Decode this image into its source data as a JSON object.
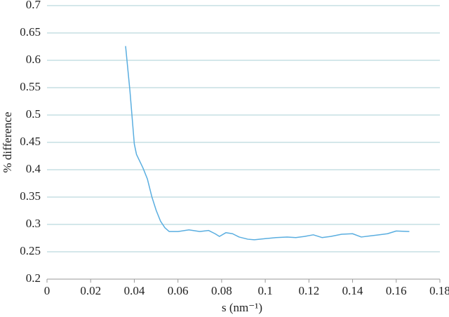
{
  "chart_data": {
    "type": "line",
    "x_label": "s (nm⁻¹)",
    "y_label": "% difference",
    "x": [
      0.036,
      0.038,
      0.04,
      0.041,
      0.044,
      0.046,
      0.048,
      0.05,
      0.052,
      0.054,
      0.056,
      0.06,
      0.065,
      0.07,
      0.074,
      0.077,
      0.079,
      0.082,
      0.085,
      0.088,
      0.092,
      0.095,
      0.1,
      0.105,
      0.11,
      0.114,
      0.118,
      0.122,
      0.126,
      0.13,
      0.135,
      0.14,
      0.144,
      0.148,
      0.152,
      0.156,
      0.16,
      0.166
    ],
    "series": [
      {
        "color": "#5aaee0",
        "values": [
          0.626,
          0.544,
          0.447,
          0.428,
          0.403,
          0.383,
          0.351,
          0.326,
          0.306,
          0.294,
          0.287,
          0.287,
          0.29,
          0.287,
          0.289,
          0.283,
          0.278,
          0.285,
          0.283,
          0.277,
          0.273,
          0.272,
          0.274,
          0.276,
          0.277,
          0.276,
          0.278,
          0.281,
          0.276,
          0.278,
          0.282,
          0.283,
          0.277,
          0.279,
          0.281,
          0.283,
          0.288,
          0.287
        ]
      }
    ],
    "xlim": [
      0,
      0.18
    ],
    "xticks": [
      0,
      0.02,
      0.04,
      0.06,
      0.08,
      0.1,
      0.12,
      0.14,
      0.16,
      0.18
    ],
    "ylim": [
      0.2,
      0.7
    ],
    "yticks": [
      0.2,
      0.25,
      0.3,
      0.35,
      0.4,
      0.45,
      0.5,
      0.55,
      0.6,
      0.65,
      0.7
    ],
    "grid": true
  }
}
